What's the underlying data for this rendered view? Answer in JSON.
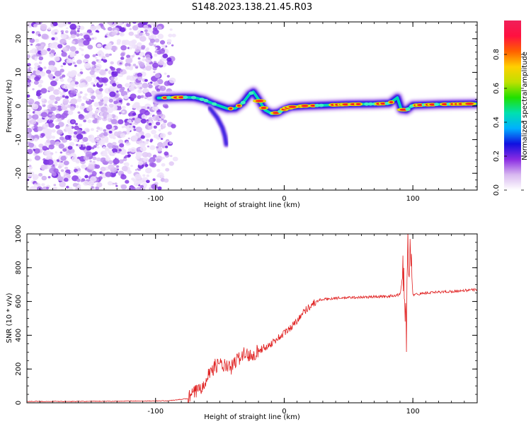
{
  "title": "S148.2023.138.21.45.R03",
  "chart_data": [
    {
      "type": "heatmap",
      "xlabel": "Height of straight line (km)",
      "ylabel": "Frequency (Hz)",
      "xlim": [
        -200,
        150
      ],
      "ylim": [
        -25,
        25
      ],
      "xticks": [
        -100,
        0,
        100
      ],
      "yticks": [
        -20,
        -10,
        0,
        10,
        20
      ],
      "colorbar": {
        "label": "Normalized spectral amplitude",
        "range": [
          0.0,
          1.0
        ],
        "ticks": [
          "0.0",
          "0.2",
          "0.4",
          "0.6",
          "0.8"
        ],
        "colormap": [
          "#ffffff",
          "#d8b8f0",
          "#8a2be2",
          "#1010e0",
          "#00b0ff",
          "#00e0b0",
          "#20e000",
          "#c0e000",
          "#ffd000",
          "#ff6000",
          "#ff1040",
          "#f0205a"
        ]
      },
      "noise_region": {
        "x_range": [
          -200,
          -83
        ],
        "y_range": [
          -25,
          25
        ]
      },
      "ridge": [
        {
          "x": -98,
          "y": 2.4
        },
        {
          "x": -88,
          "y": 2.5
        },
        {
          "x": -78,
          "y": 2.6
        },
        {
          "x": -70,
          "y": 2.5
        },
        {
          "x": -62,
          "y": 1.8
        },
        {
          "x": -56,
          "y": 0.8
        },
        {
          "x": -50,
          "y": 0.0
        },
        {
          "x": -44,
          "y": -0.8
        },
        {
          "x": -38,
          "y": -0.7
        },
        {
          "x": -32,
          "y": 1.0
        },
        {
          "x": -27,
          "y": 3.5
        },
        {
          "x": -24,
          "y": 4.2
        },
        {
          "x": -20,
          "y": 2.0
        },
        {
          "x": -15,
          "y": -1.2
        },
        {
          "x": -10,
          "y": -2.2
        },
        {
          "x": -5,
          "y": -2.0
        },
        {
          "x": 0,
          "y": -1.0
        },
        {
          "x": 5,
          "y": -0.3
        },
        {
          "x": 15,
          "y": 0.0
        },
        {
          "x": 30,
          "y": 0.2
        },
        {
          "x": 50,
          "y": 0.5
        },
        {
          "x": 70,
          "y": 0.6
        },
        {
          "x": 82,
          "y": 0.8
        },
        {
          "x": 88,
          "y": 2.5
        },
        {
          "x": 91,
          "y": -1.0
        },
        {
          "x": 95,
          "y": -1.2
        },
        {
          "x": 100,
          "y": 0.2
        },
        {
          "x": 120,
          "y": 0.5
        },
        {
          "x": 150,
          "y": 0.7
        }
      ],
      "branch": [
        {
          "x": -58,
          "y": -0.5
        },
        {
          "x": -52,
          "y": -3.5
        },
        {
          "x": -48,
          "y": -6.5
        },
        {
          "x": -46,
          "y": -9.0
        },
        {
          "x": -45,
          "y": -11.5
        }
      ]
    },
    {
      "type": "line",
      "xlabel": "Height of straight line (km)",
      "ylabel": "SNR (10 * v/v)",
      "xlim": [
        -200,
        150
      ],
      "ylim": [
        0,
        1000
      ],
      "xticks": [
        -100,
        0,
        100
      ],
      "yticks": [
        0,
        200,
        400,
        600,
        800,
        1000
      ],
      "line_color": "#e02020",
      "series": [
        {
          "x": [
            -200,
            -160,
            -120,
            -90,
            -75,
            -65,
            -58,
            -52,
            -47,
            -42,
            -37,
            -32,
            -27,
            -22,
            -17,
            -12,
            -7,
            -2,
            3,
            8,
            13,
            18,
            23,
            28,
            40,
            60,
            80,
            90,
            93,
            95,
            96,
            97,
            98,
            100,
            110,
            130,
            150
          ],
          "values": [
            8,
            8,
            10,
            12,
            25,
            90,
            180,
            230,
            220,
            200,
            250,
            290,
            280,
            300,
            320,
            340,
            370,
            400,
            430,
            470,
            520,
            560,
            590,
            610,
            620,
            625,
            630,
            640,
            800,
            400,
            950,
            680,
            900,
            640,
            650,
            660,
            670
          ]
        }
      ]
    }
  ]
}
